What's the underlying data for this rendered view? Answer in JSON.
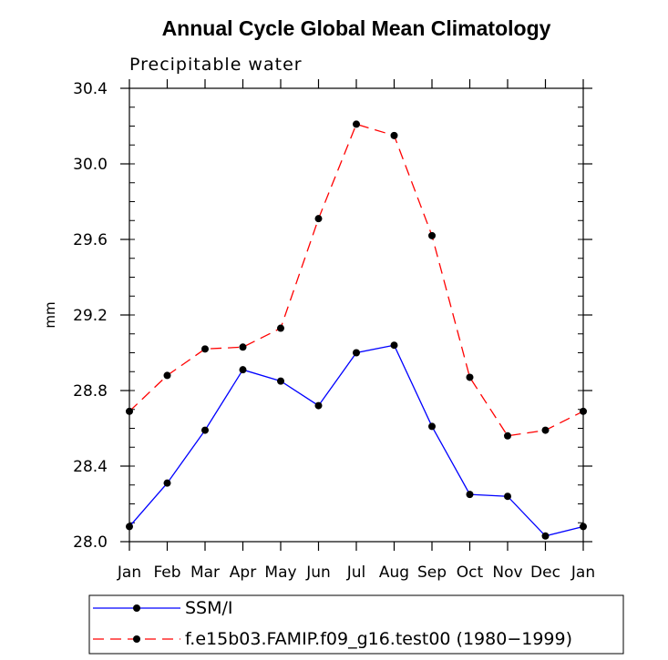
{
  "chart_data": {
    "type": "line",
    "title": "Annual Cycle Global Mean Climatology",
    "subtitle": "Precipitable water",
    "xlabel": "",
    "ylabel": "mm",
    "categories": [
      "Jan",
      "Feb",
      "Mar",
      "Apr",
      "May",
      "Jun",
      "Jul",
      "Aug",
      "Sep",
      "Oct",
      "Nov",
      "Dec",
      "Jan"
    ],
    "ylim": [
      28.0,
      30.4
    ],
    "yticks": [
      "30.4",
      "30.0",
      "29.6",
      "29.2",
      "28.8",
      "28.4",
      "28.0"
    ],
    "yminor_step": 0.1,
    "grid": false,
    "legend_position": "bottom",
    "series": [
      {
        "name": "SSM/I",
        "color": "#0000ff",
        "dashed": false,
        "values": [
          28.08,
          28.31,
          28.59,
          28.91,
          28.85,
          28.72,
          29.0,
          29.04,
          28.61,
          28.25,
          28.24,
          28.03,
          28.08
        ]
      },
      {
        "name": "f.e15b03.FAMIP.f09_g16.test00 (1980−1999)",
        "color": "#ff0000",
        "dashed": true,
        "values": [
          28.69,
          28.88,
          29.02,
          29.03,
          29.13,
          29.71,
          30.21,
          30.15,
          29.62,
          28.87,
          28.56,
          28.59,
          28.69
        ]
      }
    ]
  }
}
